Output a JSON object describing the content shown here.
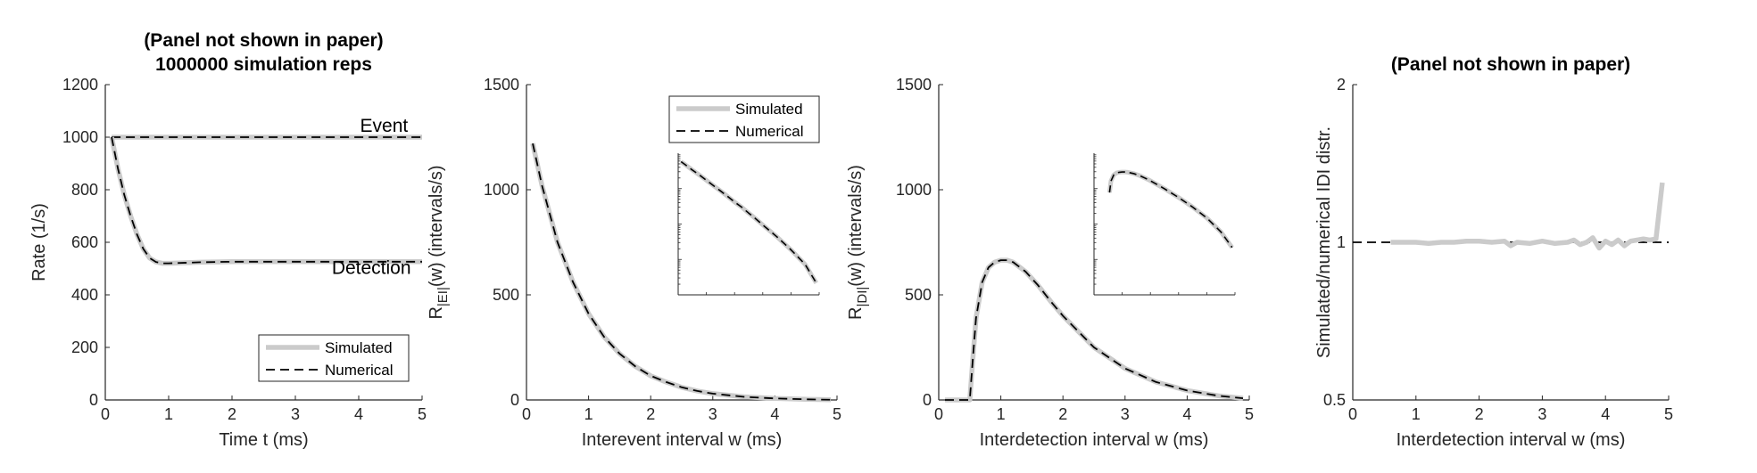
{
  "chart_data": [
    {
      "type": "line",
      "title": [
        "(Panel not shown in paper)",
        "1000000 simulation reps"
      ],
      "xlabel": "Time t (ms)",
      "ylabel": "Rate (1/s)",
      "xlim": [
        0,
        5
      ],
      "ylim": [
        0,
        1200
      ],
      "xticks": [
        "0",
        "1",
        "2",
        "3",
        "4",
        "5"
      ],
      "yticks": [
        "0",
        "200",
        "400",
        "600",
        "800",
        "1000",
        "1200"
      ],
      "grid": false,
      "legend": {
        "entries": [
          "Simulated",
          "Numerical"
        ],
        "location": "bottom-right"
      },
      "annotations": [
        {
          "text": "Event",
          "x": 4.4,
          "y": 1020
        },
        {
          "text": "Detection",
          "x": 4.2,
          "y": 480
        }
      ],
      "x": [
        0.1,
        0.2,
        0.3,
        0.4,
        0.5,
        0.6,
        0.7,
        0.8,
        0.9,
        1.0,
        1.5,
        2.0,
        2.5,
        3.0,
        3.5,
        4.0,
        4.5,
        5.0
      ],
      "series": [
        {
          "name": "Simulated",
          "style": "solid-gray",
          "curve": "event",
          "values": [
            1000,
            1000,
            1000,
            1000,
            1000,
            1000,
            1000,
            1000,
            1000,
            1000,
            1000,
            1000,
            1000,
            1000,
            1000,
            1000,
            1000,
            1000
          ]
        },
        {
          "name": "Numerical",
          "style": "dashed-black",
          "curve": "event",
          "values": [
            1000,
            1000,
            1000,
            1000,
            1000,
            1000,
            1000,
            1000,
            1000,
            1000,
            1000,
            1000,
            1000,
            1000,
            1000,
            1000,
            1000,
            1000
          ]
        },
        {
          "name": "Simulated",
          "style": "solid-gray",
          "curve": "detection",
          "values": [
            1000,
            880,
            780,
            700,
            630,
            575,
            540,
            525,
            520,
            520,
            524,
            526,
            526,
            526,
            526,
            526,
            526,
            526
          ]
        },
        {
          "name": "Numerical",
          "style": "dashed-black",
          "curve": "detection",
          "values": [
            1000,
            880,
            780,
            700,
            630,
            575,
            540,
            525,
            520,
            520,
            524,
            526,
            526,
            526,
            526,
            526,
            526,
            526
          ]
        }
      ]
    },
    {
      "type": "line",
      "title": "",
      "xlabel": "Interevent interval w (ms)",
      "ylabel": "R|EI|(w) (intervals/s)",
      "ylabel_main": "R",
      "ylabel_sub": "|EI|",
      "ylabel_rest": "(w) (intervals/s)",
      "xlim": [
        0,
        5
      ],
      "ylim": [
        0,
        1500
      ],
      "xticks": [
        "0",
        "1",
        "2",
        "3",
        "4",
        "5"
      ],
      "yticks": [
        "0",
        "500",
        "1000",
        "1500"
      ],
      "grid": false,
      "legend": {
        "entries": [
          "Simulated",
          "Numerical"
        ],
        "location": "top-right"
      },
      "inset": {
        "scale": "log-y",
        "description": "same curve on logarithmic y axis"
      },
      "x": [
        0.1,
        0.25,
        0.5,
        0.75,
        1.0,
        1.25,
        1.5,
        1.75,
        2.0,
        2.25,
        2.5,
        2.75,
        3.0,
        3.5,
        4.0,
        4.5,
        4.9
      ],
      "series": [
        {
          "name": "Simulated",
          "style": "solid-gray",
          "values": [
            1220,
            1020,
            750,
            560,
            410,
            300,
            220,
            160,
            115,
            85,
            60,
            43,
            30,
            15,
            7,
            3,
            1
          ]
        },
        {
          "name": "Numerical",
          "style": "dashed-black",
          "values": [
            1220,
            1020,
            750,
            560,
            410,
            300,
            220,
            160,
            115,
            85,
            60,
            43,
            30,
            15,
            7,
            3,
            1
          ]
        }
      ]
    },
    {
      "type": "line",
      "title": "",
      "xlabel": "Interdetection interval w (ms)",
      "ylabel": "R|DI|(w) (intervals/s)",
      "ylabel_main": "R",
      "ylabel_sub": "|DI|",
      "ylabel_rest": "(w) (intervals/s)",
      "xlim": [
        0,
        5
      ],
      "ylim": [
        0,
        1500
      ],
      "xticks": [
        "0",
        "1",
        "2",
        "3",
        "4",
        "5"
      ],
      "yticks": [
        "0",
        "500",
        "1000",
        "1500"
      ],
      "grid": false,
      "inset": {
        "scale": "log-y",
        "description": "same curve on logarithmic y axis"
      },
      "x": [
        0.1,
        0.3,
        0.5,
        0.55,
        0.6,
        0.7,
        0.8,
        0.9,
        1.0,
        1.1,
        1.2,
        1.4,
        1.6,
        1.8,
        2.0,
        2.5,
        3.0,
        3.5,
        4.0,
        4.5,
        4.9
      ],
      "series": [
        {
          "name": "Simulated",
          "style": "solid-gray",
          "values": [
            0,
            0,
            0,
            200,
            390,
            560,
            630,
            655,
            665,
            665,
            655,
            610,
            545,
            470,
            400,
            250,
            150,
            85,
            45,
            20,
            8
          ]
        },
        {
          "name": "Numerical",
          "style": "dashed-black",
          "values": [
            0,
            0,
            0,
            200,
            390,
            560,
            630,
            655,
            665,
            665,
            655,
            610,
            545,
            470,
            400,
            250,
            150,
            85,
            45,
            20,
            8
          ]
        }
      ]
    },
    {
      "type": "line",
      "title": "(Panel not shown in paper)",
      "xlabel": "Interdetection interval w (ms)",
      "ylabel": "Simulated/numerical IDI distr.",
      "xlim": [
        0,
        5
      ],
      "ylim": [
        0.5,
        2
      ],
      "yscale": "log",
      "xticks": [
        "0",
        "1",
        "2",
        "3",
        "4",
        "5"
      ],
      "yticks": [
        "0.5",
        "1",
        "2"
      ],
      "grid": false,
      "reference_line": {
        "y": 1,
        "style": "dashed-black",
        "x": [
          0,
          5
        ]
      },
      "x": [
        0.6,
        0.8,
        1.0,
        1.2,
        1.4,
        1.6,
        1.8,
        2.0,
        2.2,
        2.4,
        2.5,
        2.6,
        2.8,
        3.0,
        3.2,
        3.4,
        3.5,
        3.6,
        3.7,
        3.8,
        3.9,
        4.0,
        4.1,
        4.2,
        4.3,
        4.4,
        4.5,
        4.6,
        4.7,
        4.8,
        4.9
      ],
      "series": [
        {
          "name": "Simulated",
          "style": "solid-gray",
          "values": [
            1.0,
            1.0,
            1.0,
            0.995,
            1.0,
            1.0,
            1.005,
            1.005,
            1.0,
            1.005,
            0.985,
            1.0,
            0.995,
            1.005,
            0.995,
            1.0,
            1.01,
            0.99,
            1.0,
            1.02,
            0.975,
            1.005,
            0.99,
            1.01,
            0.985,
            1.005,
            1.01,
            1.015,
            1.01,
            1.015,
            1.3
          ]
        }
      ]
    }
  ]
}
